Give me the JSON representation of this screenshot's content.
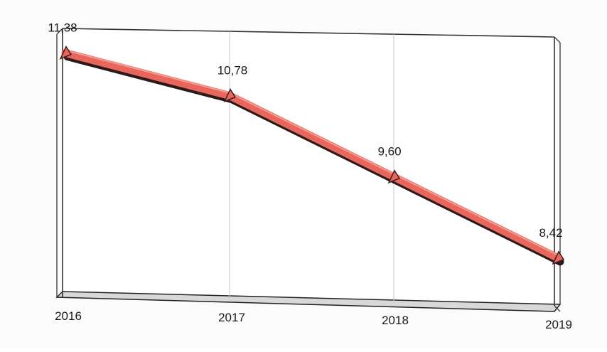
{
  "chart_data": {
    "type": "line",
    "categories": [
      "2016",
      "2017",
      "2018",
      "2019"
    ],
    "values": [
      11.38,
      10.78,
      9.6,
      8.42
    ],
    "value_labels": [
      "11,38",
      "10,78",
      "9,60",
      "8,42"
    ],
    "title": "",
    "xlabel": "",
    "ylabel": "",
    "ylim": [
      7.7,
      11.75
    ],
    "grid": "vertical",
    "legend": "none",
    "line_color": "#e8665c",
    "marker_shape": "triangle"
  }
}
